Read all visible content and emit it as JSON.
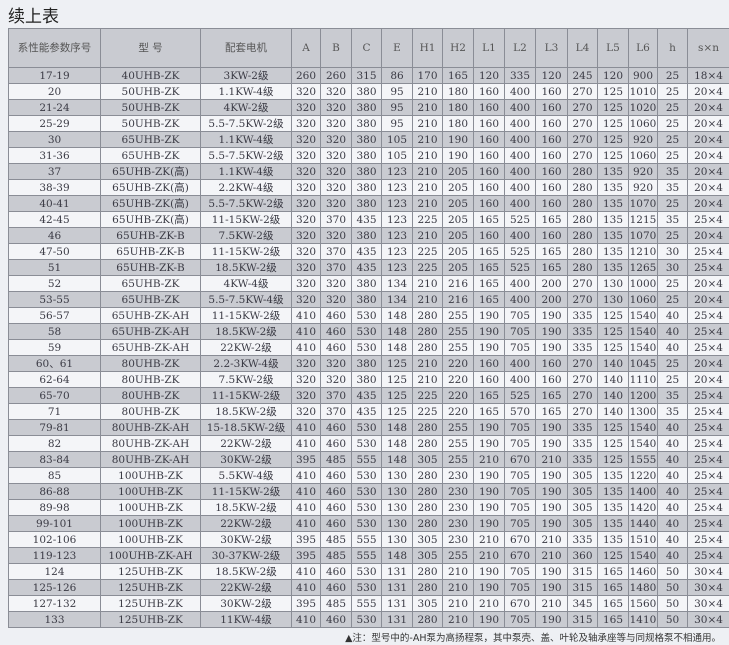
{
  "title": "续上表",
  "headers": [
    "系性能参数序号",
    "型 号",
    "配套电机",
    "A",
    "B",
    "C",
    "E",
    "H1",
    "H2",
    "L1",
    "L2",
    "L3",
    "L4",
    "L5",
    "L6",
    "h",
    "s×n"
  ],
  "rows": [
    [
      "17-19",
      "40UHB-ZK",
      "3KW-2级",
      "260",
      "260",
      "315",
      "86",
      "170",
      "165",
      "120",
      "335",
      "120",
      "245",
      "120",
      "900",
      "25",
      "18×4"
    ],
    [
      "20",
      "50UHB-ZK",
      "1.1KW-4级",
      "320",
      "320",
      "380",
      "95",
      "210",
      "180",
      "160",
      "400",
      "160",
      "270",
      "125",
      "1010",
      "25",
      "20×4"
    ],
    [
      "21-24",
      "50UHB-ZK",
      "4KW-2级",
      "320",
      "320",
      "380",
      "95",
      "210",
      "180",
      "160",
      "400",
      "160",
      "270",
      "125",
      "1020",
      "25",
      "20×4"
    ],
    [
      "25-29",
      "50UHB-ZK",
      "5.5-7.5KW-2级",
      "320",
      "320",
      "380",
      "95",
      "210",
      "180",
      "160",
      "400",
      "160",
      "270",
      "125",
      "1060",
      "25",
      "20×4"
    ],
    [
      "30",
      "65UHB-ZK",
      "1.1KW-4级",
      "320",
      "320",
      "380",
      "105",
      "210",
      "190",
      "160",
      "400",
      "160",
      "270",
      "125",
      "920",
      "25",
      "20×4"
    ],
    [
      "31-36",
      "65UHB-ZK",
      "5.5-7.5KW-2级",
      "320",
      "320",
      "380",
      "105",
      "210",
      "190",
      "160",
      "400",
      "160",
      "270",
      "125",
      "1060",
      "25",
      "20×4"
    ],
    [
      "37",
      "65UHB-ZK(高)",
      "1.1KW-4级",
      "320",
      "320",
      "380",
      "123",
      "210",
      "205",
      "160",
      "400",
      "160",
      "280",
      "135",
      "920",
      "35",
      "20×4"
    ],
    [
      "38-39",
      "65UHB-ZK(高)",
      "2.2KW-4级",
      "320",
      "320",
      "380",
      "123",
      "210",
      "205",
      "160",
      "400",
      "160",
      "280",
      "135",
      "920",
      "35",
      "20×4"
    ],
    [
      "40-41",
      "65UHB-ZK(高)",
      "5.5-7.5KW-2级",
      "320",
      "320",
      "380",
      "123",
      "210",
      "205",
      "160",
      "400",
      "160",
      "280",
      "135",
      "1070",
      "25",
      "20×4"
    ],
    [
      "42-45",
      "65UHB-ZK(高)",
      "11-15KW-2级",
      "320",
      "370",
      "435",
      "123",
      "225",
      "205",
      "165",
      "525",
      "165",
      "280",
      "135",
      "1215",
      "35",
      "25×4"
    ],
    [
      "46",
      "65UHB-ZK-B",
      "7.5KW-2级",
      "320",
      "320",
      "380",
      "123",
      "210",
      "205",
      "160",
      "400",
      "160",
      "280",
      "135",
      "1070",
      "25",
      "20×4"
    ],
    [
      "47-50",
      "65UHB-ZK-B",
      "11-15KW-2级",
      "320",
      "370",
      "435",
      "123",
      "225",
      "205",
      "165",
      "525",
      "165",
      "280",
      "135",
      "1210",
      "30",
      "25×4"
    ],
    [
      "51",
      "65UHB-ZK-B",
      "18.5KW-2级",
      "320",
      "370",
      "435",
      "123",
      "225",
      "205",
      "165",
      "525",
      "165",
      "280",
      "135",
      "1265",
      "30",
      "25×4"
    ],
    [
      "52",
      "65UHB-ZK",
      "4KW-4级",
      "320",
      "320",
      "380",
      "134",
      "210",
      "216",
      "165",
      "400",
      "200",
      "270",
      "130",
      "1000",
      "25",
      "20×4"
    ],
    [
      "53-55",
      "65UHB-ZK",
      "5.5-7.5KW-4级",
      "320",
      "320",
      "380",
      "134",
      "210",
      "216",
      "165",
      "400",
      "200",
      "270",
      "130",
      "1060",
      "25",
      "20×4"
    ],
    [
      "56-57",
      "65UHB-ZK-AH",
      "11-15KW-2级",
      "410",
      "460",
      "530",
      "148",
      "280",
      "255",
      "190",
      "705",
      "190",
      "335",
      "125",
      "1540",
      "40",
      "25×4"
    ],
    [
      "58",
      "65UHB-ZK-AH",
      "18.5KW-2级",
      "410",
      "460",
      "530",
      "148",
      "280",
      "255",
      "190",
      "705",
      "190",
      "335",
      "125",
      "1540",
      "40",
      "25×4"
    ],
    [
      "59",
      "65UHB-ZK-AH",
      "22KW-2级",
      "410",
      "460",
      "530",
      "148",
      "280",
      "255",
      "190",
      "705",
      "190",
      "335",
      "125",
      "1540",
      "40",
      "25×4"
    ],
    [
      "60、61",
      "80UHB-ZK",
      "2.2-3KW-4级",
      "320",
      "320",
      "380",
      "125",
      "210",
      "220",
      "160",
      "400",
      "160",
      "270",
      "140",
      "1045",
      "25",
      "20×4"
    ],
    [
      "62-64",
      "80UHB-ZK",
      "7.5KW-2级",
      "320",
      "320",
      "380",
      "125",
      "210",
      "220",
      "160",
      "400",
      "160",
      "270",
      "140",
      "1110",
      "25",
      "20×4"
    ],
    [
      "65-70",
      "80UHB-ZK",
      "11-15KW-2级",
      "320",
      "370",
      "435",
      "125",
      "225",
      "220",
      "165",
      "525",
      "165",
      "270",
      "140",
      "1200",
      "35",
      "25×4"
    ],
    [
      "71",
      "80UHB-ZK",
      "18.5KW-2级",
      "320",
      "370",
      "435",
      "125",
      "225",
      "220",
      "165",
      "570",
      "165",
      "270",
      "140",
      "1300",
      "35",
      "25×4"
    ],
    [
      "79-81",
      "80UHB-ZK-AH",
      "15-18.5KW-2级",
      "410",
      "460",
      "530",
      "148",
      "280",
      "255",
      "190",
      "705",
      "190",
      "335",
      "125",
      "1540",
      "40",
      "25×4"
    ],
    [
      "82",
      "80UHB-ZK-AH",
      "22KW-2级",
      "410",
      "460",
      "530",
      "148",
      "280",
      "255",
      "190",
      "705",
      "190",
      "335",
      "125",
      "1540",
      "40",
      "25×4"
    ],
    [
      "83-84",
      "80UHB-ZK-AH",
      "30KW-2级",
      "395",
      "485",
      "555",
      "148",
      "305",
      "255",
      "210",
      "670",
      "210",
      "335",
      "125",
      "1555",
      "40",
      "25×4"
    ],
    [
      "85",
      "100UHB-ZK",
      "5.5KW-4级",
      "410",
      "460",
      "530",
      "130",
      "280",
      "230",
      "190",
      "705",
      "190",
      "305",
      "135",
      "1220",
      "40",
      "25×4"
    ],
    [
      "86-88",
      "100UHB-ZK",
      "11-15KW-2级",
      "410",
      "460",
      "530",
      "130",
      "280",
      "230",
      "190",
      "705",
      "190",
      "305",
      "135",
      "1400",
      "40",
      "25×4"
    ],
    [
      "89-98",
      "100UHB-ZK",
      "18.5KW-2级",
      "410",
      "460",
      "530",
      "130",
      "280",
      "230",
      "190",
      "705",
      "190",
      "305",
      "135",
      "1420",
      "40",
      "25×4"
    ],
    [
      "99-101",
      "100UHB-ZK",
      "22KW-2级",
      "410",
      "460",
      "530",
      "130",
      "280",
      "230",
      "190",
      "705",
      "190",
      "305",
      "135",
      "1440",
      "40",
      "25×4"
    ],
    [
      "102-106",
      "100UHB-ZK",
      "30KW-2级",
      "395",
      "485",
      "555",
      "130",
      "305",
      "230",
      "210",
      "670",
      "210",
      "335",
      "135",
      "1510",
      "40",
      "25×4"
    ],
    [
      "119-123",
      "100UHB-ZK-AH",
      "30-37KW-2级",
      "395",
      "485",
      "555",
      "148",
      "305",
      "255",
      "210",
      "670",
      "210",
      "360",
      "125",
      "1540",
      "40",
      "25×4"
    ],
    [
      "124",
      "125UHB-ZK",
      "18.5KW-2级",
      "410",
      "460",
      "530",
      "131",
      "280",
      "210",
      "190",
      "705",
      "190",
      "315",
      "165",
      "1460",
      "50",
      "30×4"
    ],
    [
      "125-126",
      "125UHB-ZK",
      "22KW-2级",
      "410",
      "460",
      "530",
      "131",
      "280",
      "210",
      "190",
      "705",
      "190",
      "315",
      "165",
      "1480",
      "50",
      "30×4"
    ],
    [
      "127-132",
      "125UHB-ZK",
      "30KW-2级",
      "395",
      "485",
      "555",
      "131",
      "305",
      "210",
      "210",
      "670",
      "210",
      "345",
      "165",
      "1560",
      "50",
      "30×4"
    ],
    [
      "133",
      "125UHB-ZK",
      "11KW-4级",
      "410",
      "460",
      "530",
      "131",
      "280",
      "210",
      "190",
      "705",
      "190",
      "315",
      "165",
      "1410",
      "50",
      "30×4"
    ]
  ],
  "shaded_rows": [
    0,
    2,
    4,
    6,
    8,
    10,
    12,
    14,
    16,
    18,
    20,
    22,
    24,
    26,
    28,
    30,
    32,
    34
  ],
  "note": "▲注：型号中的-AH泵为高扬程泵，其中泵壳、盖、叶轮及轴承座等与同规格泵不相通用。",
  "colors": {
    "shade": "#c9cbd1",
    "light": "#f4f5f8",
    "border": "#8a8d96"
  }
}
